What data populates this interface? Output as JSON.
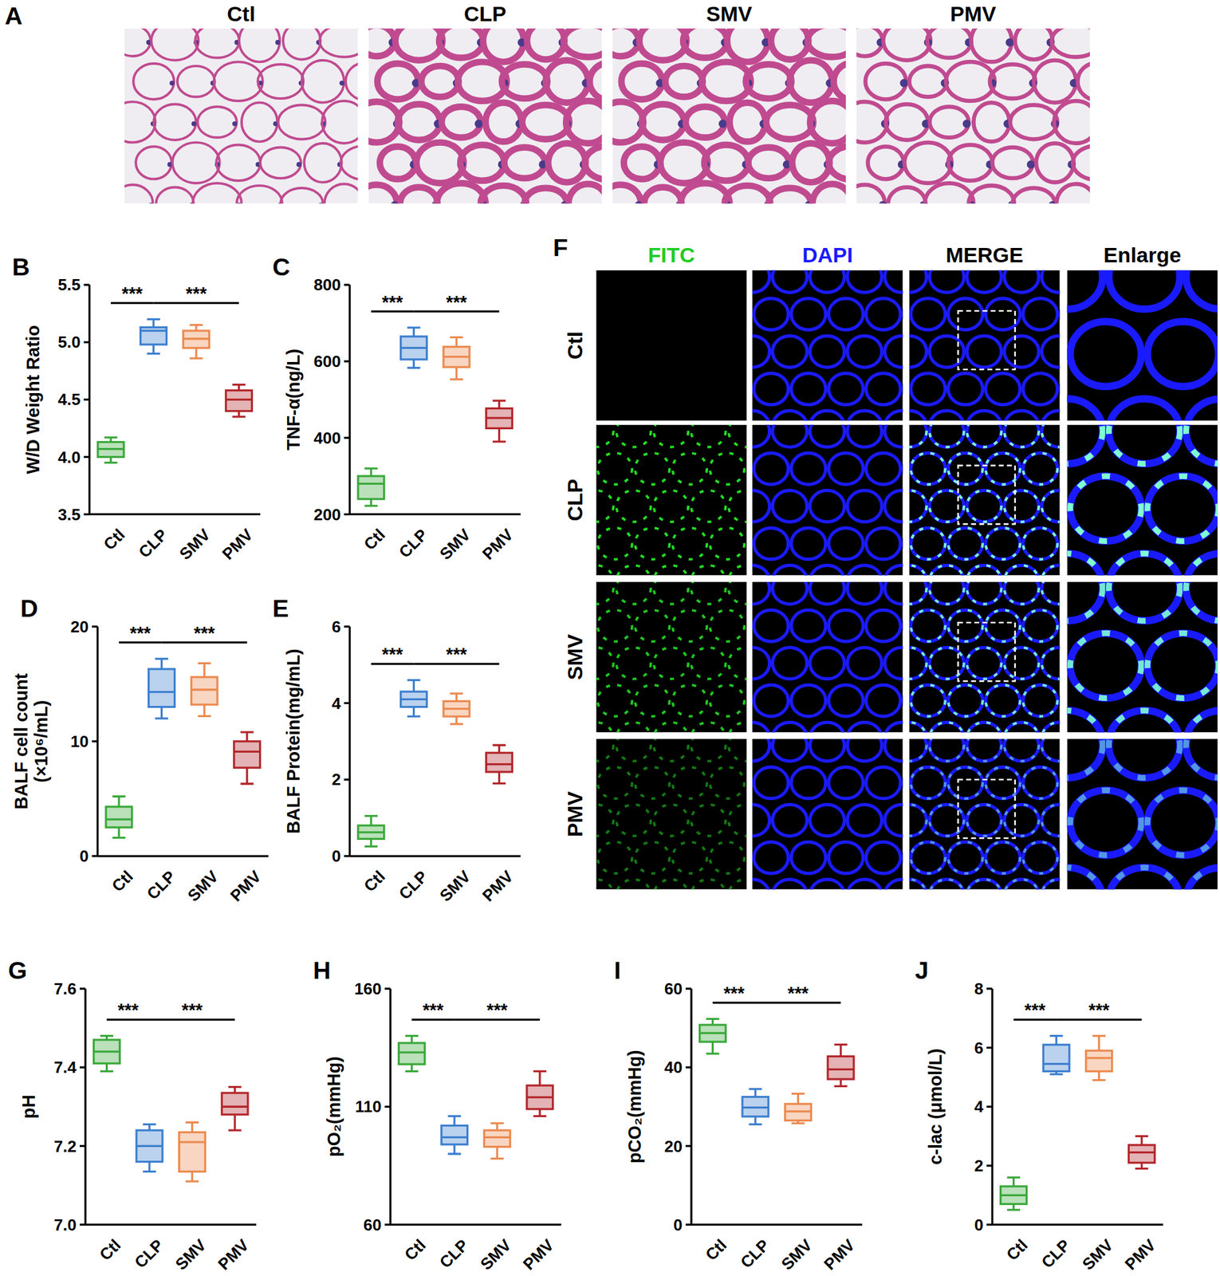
{
  "chart_data": [
    {
      "type": "box",
      "panel_label": "B",
      "ylabel": "W/D Weight Ratio",
      "categories": [
        "Ctl",
        "CLP",
        "SMV",
        "PMV"
      ],
      "colors": [
        "#3aa83a",
        "#3c7fcf",
        "#ec8a4f",
        "#b3262b"
      ],
      "stats": {
        "min": [
          3.95,
          4.9,
          4.86,
          4.35
        ],
        "q1": [
          4.0,
          4.98,
          4.95,
          4.4
        ],
        "median": [
          4.07,
          5.1,
          5.03,
          4.5
        ],
        "q3": [
          4.13,
          5.13,
          5.1,
          4.58
        ],
        "max": [
          4.17,
          5.2,
          5.15,
          4.63
        ]
      },
      "ylim": [
        3.5,
        5.5
      ],
      "yticks": [
        3.5,
        {
          "value": 4,
          "label": "4.0"
        },
        4.5,
        {
          "value": 5,
          "label": "5.0"
        },
        5.5
      ],
      "annotations": [
        {
          "from": 0,
          "to": 1,
          "text": "***"
        },
        {
          "from": 1,
          "to": 3,
          "text": "***"
        }
      ]
    },
    {
      "type": "box",
      "panel_label": "C",
      "ylabel": "TNF-α(ng/L)",
      "categories": [
        "Ctl",
        "CLP",
        "SMV",
        "PMV"
      ],
      "colors": [
        "#3aa83a",
        "#3c7fcf",
        "#ec8a4f",
        "#b3262b"
      ],
      "stats": {
        "min": [
          222,
          583,
          553,
          390
        ],
        "q1": [
          240,
          605,
          585,
          425
        ],
        "median": [
          280,
          635,
          612,
          452
        ],
        "q3": [
          300,
          665,
          638,
          477
        ],
        "max": [
          320,
          688,
          663,
          497
        ]
      },
      "ylim": [
        200,
        800
      ],
      "yticks": [
        200,
        400,
        600,
        800
      ],
      "annotations": [
        {
          "from": 0,
          "to": 1,
          "text": "***"
        },
        {
          "from": 1,
          "to": 3,
          "text": "***"
        }
      ]
    },
    {
      "type": "box",
      "panel_label": "D",
      "ylabel": [
        "BALF cell count",
        "(×10⁶/mL)"
      ],
      "categories": [
        "Ctl",
        "CLP",
        "SMV",
        "PMV"
      ],
      "colors": [
        "#3aa83a",
        "#3c7fcf",
        "#ec8a4f",
        "#b3262b"
      ],
      "stats": {
        "min": [
          1.6,
          12,
          12.2,
          6.3
        ],
        "q1": [
          2.5,
          13,
          13.2,
          7.7
        ],
        "median": [
          3.2,
          14.3,
          14.5,
          9.1
        ],
        "q3": [
          4.3,
          16.3,
          15.6,
          10
        ],
        "max": [
          5.2,
          17.2,
          16.8,
          10.8
        ]
      },
      "ylim": [
        0,
        20
      ],
      "yticks": [
        0,
        10,
        20
      ],
      "annotations": [
        {
          "from": 0,
          "to": 1,
          "text": "***"
        },
        {
          "from": 1,
          "to": 3,
          "text": "***"
        }
      ]
    },
    {
      "type": "box",
      "panel_label": "E",
      "ylabel": "BALF Protein(mg/mL)",
      "categories": [
        "Ctl",
        "CLP",
        "SMV",
        "PMV"
      ],
      "colors": [
        "#3aa83a",
        "#3c7fcf",
        "#ec8a4f",
        "#b3262b"
      ],
      "stats": {
        "min": [
          0.25,
          3.65,
          3.45,
          1.9
        ],
        "q1": [
          0.45,
          3.9,
          3.65,
          2.2
        ],
        "median": [
          0.62,
          4.1,
          3.85,
          2.4
        ],
        "q3": [
          0.8,
          4.3,
          4.05,
          2.7
        ],
        "max": [
          1.05,
          4.6,
          4.25,
          2.9
        ]
      },
      "ylim": [
        0,
        6
      ],
      "yticks": [
        0,
        2,
        4,
        6
      ],
      "annotations": [
        {
          "from": 0,
          "to": 1,
          "text": "***"
        },
        {
          "from": 1,
          "to": 3,
          "text": "***"
        }
      ]
    },
    {
      "type": "box",
      "panel_label": "G",
      "ylabel": "pH",
      "categories": [
        "Ctl",
        "CLP",
        "SMV",
        "PMV"
      ],
      "colors": [
        "#3aa83a",
        "#3c7fcf",
        "#ec8a4f",
        "#b3262b"
      ],
      "stats": {
        "min": [
          7.39,
          7.135,
          7.11,
          7.24
        ],
        "q1": [
          7.41,
          7.16,
          7.135,
          7.28
        ],
        "median": [
          7.44,
          7.2,
          7.21,
          7.3
        ],
        "q3": [
          7.47,
          7.24,
          7.235,
          7.335
        ],
        "max": [
          7.48,
          7.255,
          7.26,
          7.35
        ]
      },
      "ylim": [
        7.0,
        7.6
      ],
      "yticks": [
        {
          "value": 7,
          "label": "7.0"
        },
        7.2,
        7.4,
        7.6
      ],
      "annotations": [
        {
          "from": 0,
          "to": 1,
          "text": "***"
        },
        {
          "from": 1,
          "to": 3,
          "text": "***"
        }
      ]
    },
    {
      "type": "box",
      "panel_label": "H",
      "ylabel": "pO₂(mmHg)",
      "categories": [
        "Ctl",
        "CLP",
        "SMV",
        "PMV"
      ],
      "colors": [
        "#3aa83a",
        "#3c7fcf",
        "#ec8a4f",
        "#b3262b"
      ],
      "stats": {
        "min": [
          125,
          90,
          88,
          106
        ],
        "q1": [
          128,
          94,
          93,
          109
        ],
        "median": [
          133,
          97,
          97,
          114
        ],
        "q3": [
          137,
          102,
          100,
          119
        ],
        "max": [
          140,
          106,
          103,
          125
        ]
      },
      "ylim": [
        60,
        160
      ],
      "yticks": [
        60,
        110,
        160
      ],
      "annotations": [
        {
          "from": 0,
          "to": 1,
          "text": "***"
        },
        {
          "from": 1,
          "to": 3,
          "text": "***"
        }
      ]
    },
    {
      "type": "box",
      "panel_label": "I",
      "ylabel": "pCO₂(mmHg)",
      "categories": [
        "Ctl",
        "CLP",
        "SMV",
        "PMV"
      ],
      "colors": [
        "#3aa83a",
        "#3c7fcf",
        "#ec8a4f",
        "#b3262b"
      ],
      "stats": {
        "min": [
          43.5,
          25.5,
          25.8,
          35.2
        ],
        "q1": [
          46.5,
          27.5,
          26.5,
          37
        ],
        "median": [
          48.7,
          29.8,
          28.8,
          39.5
        ],
        "q3": [
          50.8,
          32.5,
          30.7,
          42.8
        ],
        "max": [
          52.3,
          34.5,
          33.3,
          45.8
        ]
      },
      "ylim": [
        0,
        60
      ],
      "yticks": [
        0,
        20,
        40,
        60
      ],
      "annotations": [
        {
          "from": 0,
          "to": 1,
          "text": "***"
        },
        {
          "from": 1,
          "to": 3,
          "text": "***"
        }
      ]
    },
    {
      "type": "box",
      "panel_label": "J",
      "ylabel": "c-lac (μmol/L)",
      "categories": [
        "Ctl",
        "CLP",
        "SMV",
        "PMV"
      ],
      "colors": [
        "#3aa83a",
        "#3c7fcf",
        "#ec8a4f",
        "#b3262b"
      ],
      "stats": {
        "min": [
          0.5,
          5.1,
          4.9,
          1.9
        ],
        "q1": [
          0.7,
          5.2,
          5.2,
          2.1
        ],
        "median": [
          1,
          5.45,
          5.65,
          2.45
        ],
        "q3": [
          1.3,
          6.1,
          5.9,
          2.7
        ],
        "max": [
          1.6,
          6.4,
          6.4,
          3
        ]
      },
      "ylim": [
        0,
        8
      ],
      "yticks": [
        0,
        2,
        4,
        6,
        8
      ],
      "annotations": [
        {
          "from": 0,
          "to": 1,
          "text": "***"
        },
        {
          "from": 1,
          "to": 3,
          "text": "***"
        }
      ]
    }
  ],
  "image_panels": [
    {
      "panel_label": "A",
      "titles": [
        "Ctl",
        "CLP",
        "SMV",
        "PMV"
      ]
    },
    {
      "panel_label": "F",
      "column_titles": [
        "FITC",
        "DAPI",
        "MERGE",
        "Enlarge"
      ],
      "column_colors": [
        "#22cc22",
        "#1a1aff",
        "#000000",
        "#000000"
      ],
      "row_titles": [
        "Ctl",
        "CLP",
        "SMV",
        "PMV"
      ]
    }
  ]
}
